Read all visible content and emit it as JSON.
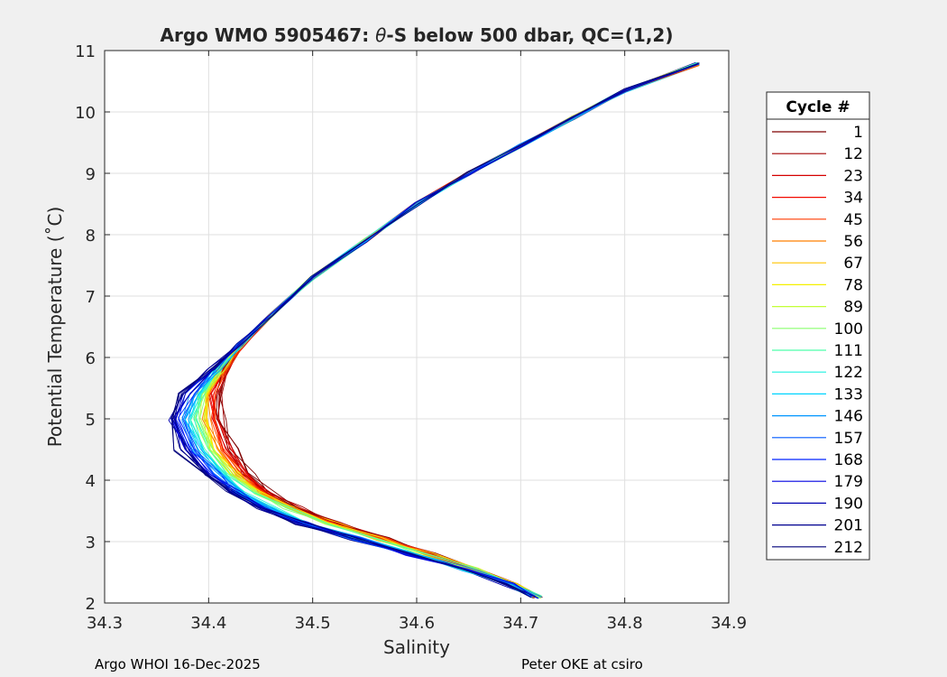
{
  "chart_data": {
    "type": "line",
    "title_prefix": "Argo WMO 5905467: ",
    "title_theta": "θ",
    "title_suffix": "-S below 500 dbar,  QC=(1,2)",
    "xlabel": "Salinity",
    "ylabel": "Potential Temperature (˚C)",
    "xlim": [
      34.3,
      34.9
    ],
    "ylim": [
      2,
      11
    ],
    "x_ticks": [
      "34.3",
      "34.4",
      "34.5",
      "34.6",
      "34.7",
      "34.8",
      "34.9"
    ],
    "y_ticks": [
      "2",
      "3",
      "4",
      "5",
      "6",
      "7",
      "8",
      "9",
      "10",
      "11"
    ],
    "grid": true,
    "legend": {
      "title": "Cycle #",
      "placement": "right-outside",
      "entries": [
        {
          "label": "1",
          "color": "#7f0000"
        },
        {
          "label": "12",
          "color": "#a30000"
        },
        {
          "label": "23",
          "color": "#d40000"
        },
        {
          "label": "34",
          "color": "#f20a00"
        },
        {
          "label": "45",
          "color": "#ff3c00"
        },
        {
          "label": "56",
          "color": "#ff8000"
        },
        {
          "label": "67",
          "color": "#ffc400"
        },
        {
          "label": "78",
          "color": "#f5f000"
        },
        {
          "label": "89",
          "color": "#c2ff36"
        },
        {
          "label": "100",
          "color": "#8aff6e"
        },
        {
          "label": "111",
          "color": "#4dffaa"
        },
        {
          "label": "122",
          "color": "#1ef0e0"
        },
        {
          "label": "133",
          "color": "#00d4ff"
        },
        {
          "label": "146",
          "color": "#0096ff"
        },
        {
          "label": "157",
          "color": "#005aff"
        },
        {
          "label": "168",
          "color": "#0024ff"
        },
        {
          "label": "179",
          "color": "#0000e0"
        },
        {
          "label": "190",
          "color": "#0000b0"
        },
        {
          "label": "201",
          "color": "#000090"
        },
        {
          "label": "212",
          "color": "#00007a"
        }
      ]
    },
    "profile_shape": {
      "salinity": [
        34.715,
        34.69,
        34.65,
        34.6,
        34.55,
        34.5,
        34.46,
        34.43,
        34.41,
        34.395,
        34.39,
        34.395,
        34.41,
        34.43,
        34.46,
        34.5,
        34.55,
        34.6,
        34.65,
        34.7,
        34.75,
        34.8,
        34.87
      ],
      "theta": [
        2.1,
        2.3,
        2.55,
        2.8,
        3.05,
        3.3,
        3.55,
        3.8,
        4.1,
        4.5,
        5.0,
        5.4,
        5.8,
        6.2,
        6.7,
        7.3,
        7.9,
        8.5,
        9.0,
        9.45,
        9.9,
        10.35,
        10.78
      ]
    }
  },
  "footer": {
    "left": "Argo WHOI 16-Dec-2025",
    "right": "Peter OKE at csiro"
  }
}
